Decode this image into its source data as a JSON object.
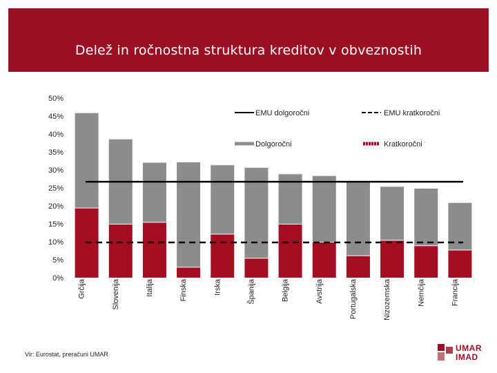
{
  "header": {
    "title": "Delež in ročnostna struktura kreditov v obveznostih"
  },
  "colors": {
    "header": "#9b0f24",
    "long_term": "#8c8c8c",
    "short_term": "#a50d22",
    "line": "#000000"
  },
  "chart_data": {
    "type": "bar",
    "stacked": true,
    "categories": [
      "Grčija",
      "Slovenija",
      "Italija",
      "Finska",
      "Irska",
      "Španija",
      "Belgija",
      "Avstrija",
      "Portugalska",
      "Nizozemska",
      "Nemčija",
      "Francija"
    ],
    "series": [
      {
        "name": "Kratkoročni",
        "values": [
          19.5,
          15.0,
          15.5,
          3.0,
          12.2,
          5.5,
          15.0,
          10.0,
          6.2,
          10.5,
          9.0,
          7.8
        ]
      },
      {
        "name": "Dolgoročni",
        "values": [
          26.5,
          23.7,
          16.7,
          29.3,
          19.3,
          25.3,
          14.0,
          18.5,
          20.8,
          15.0,
          16.0,
          13.2
        ]
      }
    ],
    "reference_lines": [
      {
        "name": "EMU dolgoročni",
        "value": 26.7,
        "style": "solid"
      },
      {
        "name": "EMU kratkoročni",
        "value": 9.8,
        "style": "dashed"
      }
    ],
    "ylim": [
      0,
      50
    ],
    "yticks": [
      "0%",
      "5%",
      "10%",
      "15%",
      "20%",
      "25%",
      "30%",
      "35%",
      "40%",
      "45%",
      "50%"
    ],
    "legend": {
      "emu_long": "EMU dolgoročni",
      "emu_short": "EMU kratkoročni",
      "long": "Dolgoročni",
      "short": "Kratkoročni"
    },
    "title": "Delež in ročnostna struktura kreditov v obveznostih"
  },
  "footer": {
    "source": "Vir: Eurostat, preračuni UMAR",
    "logo_top": "UMAR",
    "logo_bottom": "IMAD"
  }
}
